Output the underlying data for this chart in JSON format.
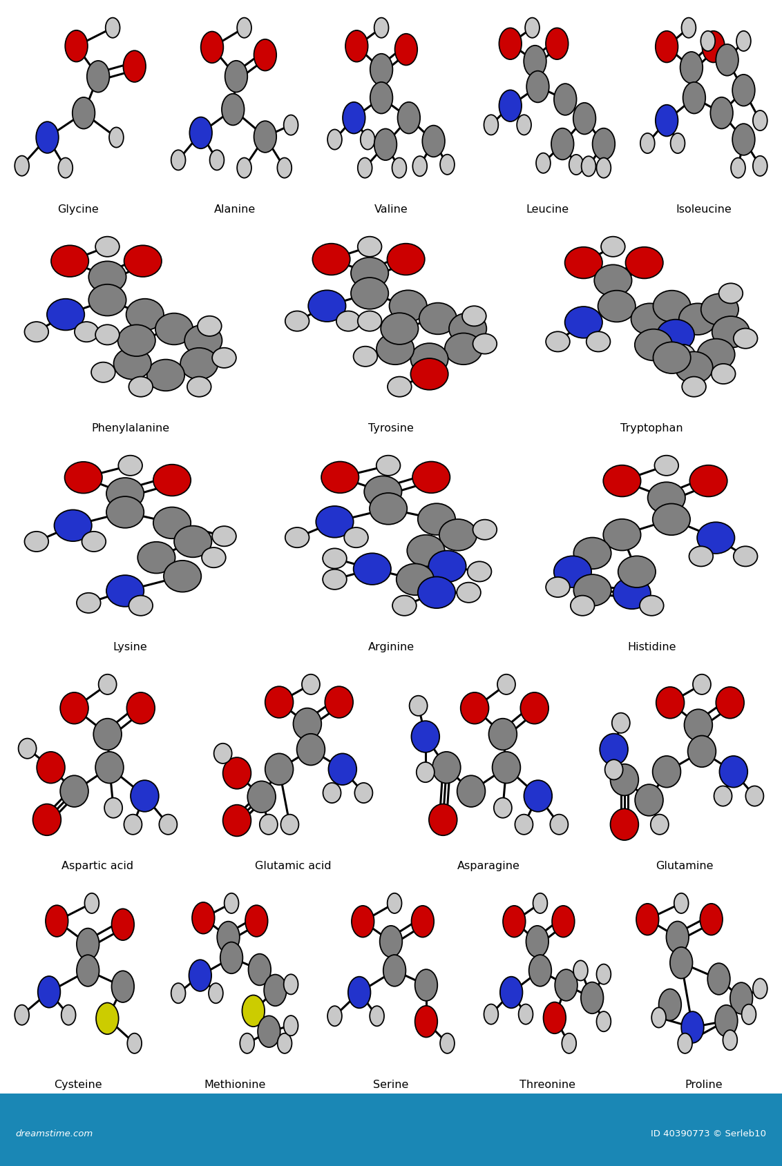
{
  "bg": "#ffffff",
  "footer_color": "#1a87b5",
  "footer_text_color": "#ffffff",
  "C": "#808080",
  "O": "#cc0000",
  "N": "#2233cc",
  "H": "#c8c8c8",
  "S": "#cccc00",
  "rl": 0.072,
  "rs": 0.046,
  "bond_lw": 2.2,
  "label_fontsize": 11.5,
  "rows": [
    {
      "ncols": 5,
      "names": [
        "Glycine",
        "Alanine",
        "Valine",
        "Leucine",
        "Isoleucine"
      ]
    },
    {
      "ncols": 3,
      "names": [
        "Phenylalanine",
        "Tyrosine",
        "Tryptophan"
      ]
    },
    {
      "ncols": 3,
      "names": [
        "Lysine",
        "Arginine",
        "Histidine"
      ]
    },
    {
      "ncols": 4,
      "names": [
        "Aspartic acid",
        "Glutamic acid",
        "Asparagine",
        "Glutamine"
      ]
    },
    {
      "ncols": 5,
      "names": [
        "Cysteine",
        "Methionine",
        "Serine",
        "Threonine",
        "Proline"
      ]
    }
  ]
}
